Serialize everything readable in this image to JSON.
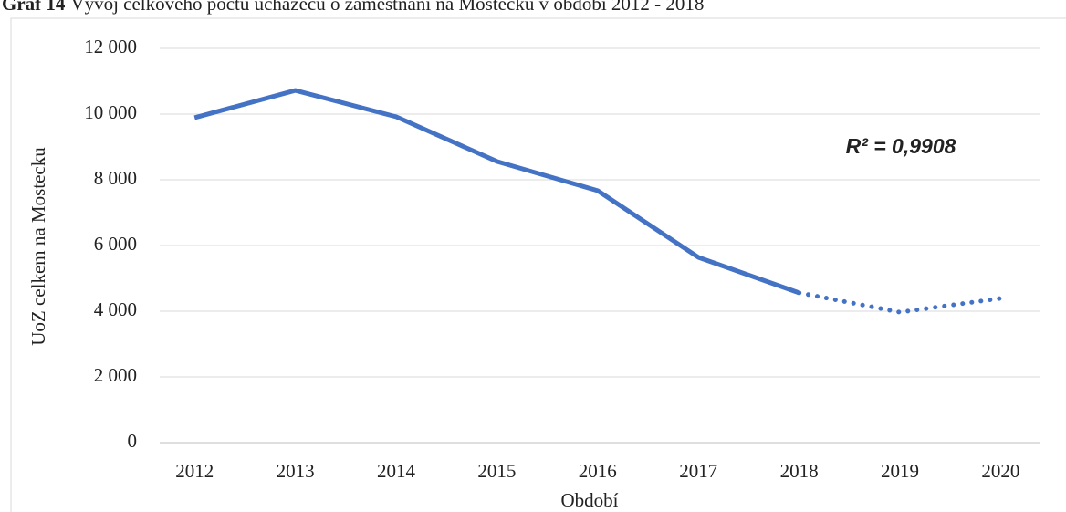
{
  "chart_data": {
    "type": "line",
    "title_label": "Graf 14",
    "title": "Vývoj celkového počtu uchazečů o zaměstnání na Mostecku v období 2012 - 2018",
    "x_label": "Období",
    "y_label": "UoZ celkem na Mostecku",
    "annotation": "R² = 0,9908",
    "categories": [
      "2012",
      "2013",
      "2014",
      "2015",
      "2016",
      "2017",
      "2018",
      "2019",
      "2020"
    ],
    "series": [
      {
        "color": "#4472c4",
        "style": "solid",
        "values": [
          9890,
          10720,
          9920,
          8560,
          7670,
          5640,
          4560,
          null,
          null
        ]
      },
      {
        "color": "#4472c4",
        "style": "dotted",
        "values": [
          null,
          null,
          null,
          null,
          null,
          null,
          4560,
          3970,
          4390
        ]
      }
    ],
    "ylim": [
      0,
      12000
    ],
    "yticks": [
      0,
      {
        "value": 2000,
        "label": "2 000"
      },
      {
        "value": 4000,
        "label": "4 000"
      },
      {
        "value": 6000,
        "label": "6 000"
      },
      {
        "value": 8000,
        "label": "8 000"
      },
      {
        "value": 10000,
        "label": "10 000"
      },
      {
        "value": 12000,
        "label": "12 000"
      }
    ],
    "grid": true
  }
}
